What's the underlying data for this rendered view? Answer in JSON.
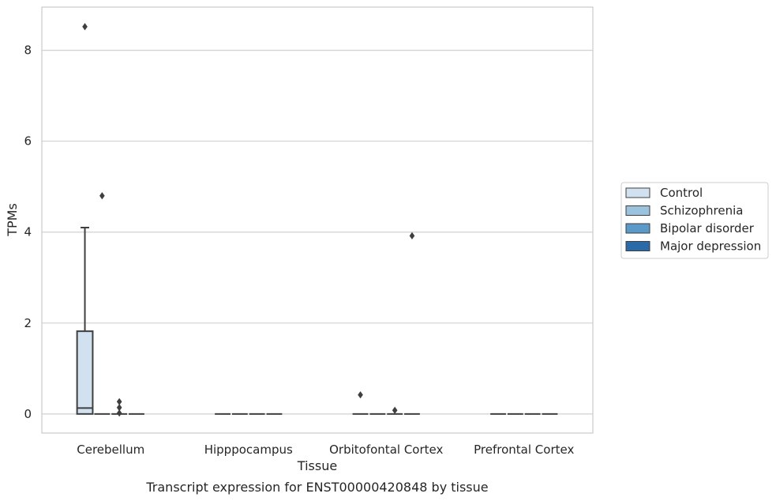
{
  "chart_data": {
    "type": "box",
    "title": "",
    "caption": "Transcript expression for ENST00000420848 by tissue",
    "xlabel": "Tissue",
    "ylabel": "TPMs",
    "ylim": [
      -0.42,
      8.95
    ],
    "yticks": [
      0,
      2,
      4,
      6,
      8
    ],
    "grid": "horizontal",
    "legend_position": "right",
    "categories": [
      "Cerebellum",
      "Hipppocampus",
      "Orbitofontal Cortex",
      "Prefrontal Cortex"
    ],
    "series": [
      {
        "name": "Control",
        "color": "#d1e1f0",
        "boxes": [
          {
            "q1": 0,
            "median": 0.13,
            "q3": 1.82,
            "whisker_low": 0,
            "whisker_high": 4.1,
            "outliers": [
              8.52
            ]
          },
          {
            "q1": 0,
            "median": 0,
            "q3": 0,
            "whisker_low": 0,
            "whisker_high": 0,
            "outliers": []
          },
          {
            "q1": 0,
            "median": 0,
            "q3": 0,
            "whisker_low": 0,
            "whisker_high": 0,
            "outliers": [
              0.42
            ]
          },
          {
            "q1": 0,
            "median": 0,
            "q3": 0,
            "whisker_low": 0,
            "whisker_high": 0,
            "outliers": []
          }
        ]
      },
      {
        "name": "Schizophrenia",
        "color": "#9bc3dd",
        "boxes": [
          {
            "q1": 0,
            "median": 0,
            "q3": 0,
            "whisker_low": 0,
            "whisker_high": 0,
            "outliers": [
              4.8
            ]
          },
          {
            "q1": 0,
            "median": 0,
            "q3": 0,
            "whisker_low": 0,
            "whisker_high": 0,
            "outliers": []
          },
          {
            "q1": 0,
            "median": 0,
            "q3": 0,
            "whisker_low": 0,
            "whisker_high": 0,
            "outliers": []
          },
          {
            "q1": 0,
            "median": 0,
            "q3": 0,
            "whisker_low": 0,
            "whisker_high": 0,
            "outliers": []
          }
        ]
      },
      {
        "name": "Bipolar disorder",
        "color": "#5b9ac8",
        "boxes": [
          {
            "q1": 0,
            "median": 0,
            "q3": 0,
            "whisker_low": 0,
            "whisker_high": 0,
            "outliers": [
              0.27,
              0.14,
              0.02
            ]
          },
          {
            "q1": 0,
            "median": 0,
            "q3": 0,
            "whisker_low": 0,
            "whisker_high": 0,
            "outliers": []
          },
          {
            "q1": 0,
            "median": 0,
            "q3": 0,
            "whisker_low": 0,
            "whisker_high": 0,
            "outliers": [
              0.08
            ]
          },
          {
            "q1": 0,
            "median": 0,
            "q3": 0,
            "whisker_low": 0,
            "whisker_high": 0,
            "outliers": []
          }
        ]
      },
      {
        "name": "Major depression",
        "color": "#2a6aa9",
        "boxes": [
          {
            "q1": 0,
            "median": 0,
            "q3": 0,
            "whisker_low": 0,
            "whisker_high": 0,
            "outliers": []
          },
          {
            "q1": 0,
            "median": 0,
            "q3": 0,
            "whisker_low": 0,
            "whisker_high": 0,
            "outliers": []
          },
          {
            "q1": 0,
            "median": 0,
            "q3": 0,
            "whisker_low": 0,
            "whisker_high": 0,
            "outliers": [
              3.92
            ]
          },
          {
            "q1": 0,
            "median": 0,
            "q3": 0,
            "whisker_low": 0,
            "whisker_high": 0,
            "outliers": []
          }
        ]
      }
    ]
  }
}
